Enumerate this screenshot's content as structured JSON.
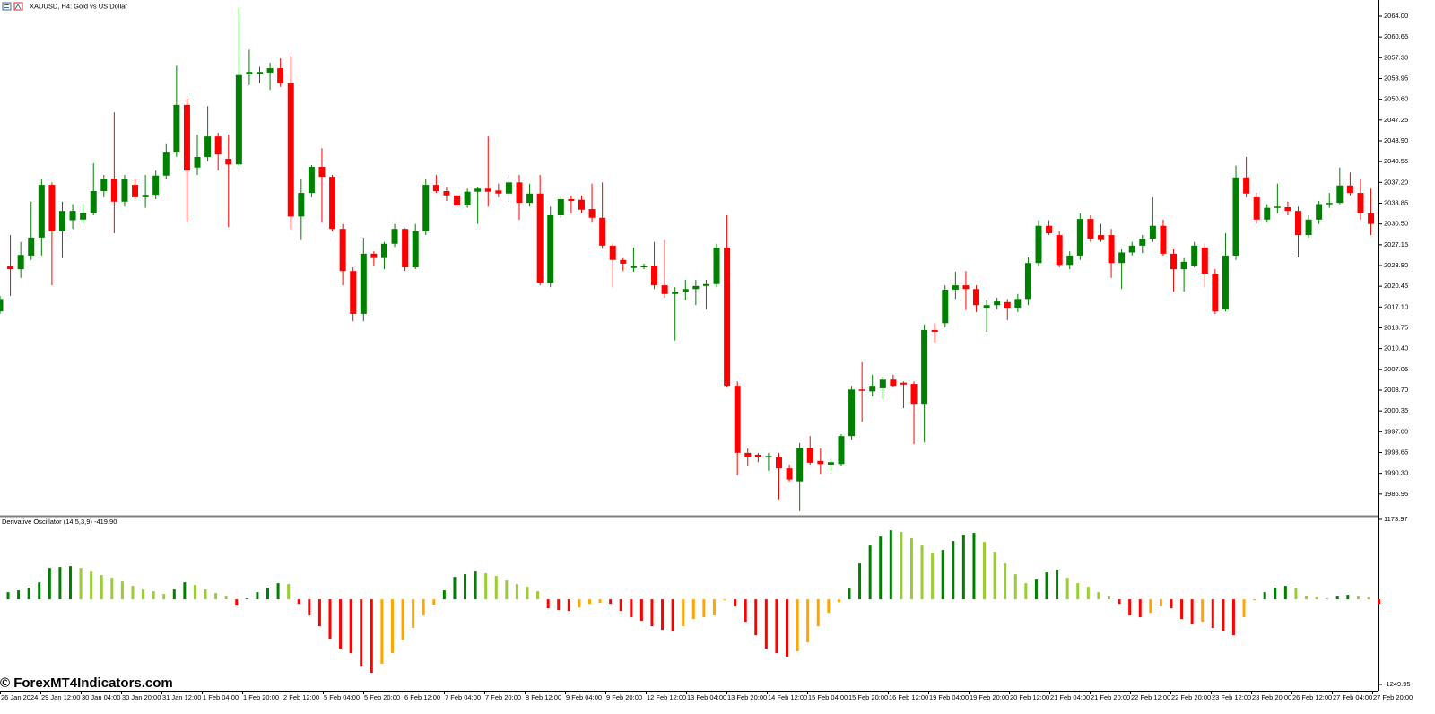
{
  "chart_data": [
    {
      "type": "candlestick",
      "title": "XAUUSD, H4:  Gold vs US Dollar",
      "x_labels": [
        "26 Jan 2024",
        "29 Jan 12:00",
        "30 Jan 04:00",
        "30 Jan 20:00",
        "31 Jan 12:00",
        "1 Feb 04:00",
        "1 Feb 20:00",
        "2 Feb 12:00",
        "5 Feb 04:00",
        "5 Feb 20:00",
        "6 Feb 12:00",
        "7 Feb 04:00",
        "7 Feb 20:00",
        "8 Feb 12:00",
        "9 Feb 04:00",
        "9 Feb 20:00",
        "12 Feb 12:00",
        "13 Feb 04:00",
        "13 Feb 20:00",
        "14 Feb 12:00",
        "15 Feb 04:00",
        "15 Feb 20:00",
        "16 Feb 12:00",
        "19 Feb 04:00",
        "19 Feb 20:00",
        "20 Feb 12:00",
        "21 Feb 04:00",
        "21 Feb 20:00",
        "22 Feb 12:00",
        "22 Feb 20:00",
        "23 Feb 12:00",
        "23 Feb 20:00",
        "26 Feb 12:00",
        "27 Feb 04:00",
        "27 Feb 20:00"
      ],
      "open": [
        2016.4,
        2023.7,
        2023.2,
        2025.4,
        2028.3,
        2036.8,
        2029.3,
        2031.1,
        2031.2,
        2032.2,
        2035.8,
        2037.8,
        2034.1,
        2036.8,
        2034.8,
        2035.2,
        2038.3,
        2042.0,
        2049.7,
        2039.6,
        2041.3,
        2044.6,
        2041.0,
        2040.1,
        2054.6,
        2054.7,
        2054.9,
        2055.6,
        2053.2,
        2031.7,
        2035.5,
        2039.7,
        2038.1,
        2029.7,
        2022.9,
        2016.0,
        2025.7,
        2025.0,
        2027.3,
        2029.7,
        2023.5,
        2029.3,
        2036.8,
        2035.8,
        2035.1,
        2033.5,
        2035.7,
        2036.2,
        2035.9,
        2035.4,
        2037.2,
        2033.9,
        2035.4,
        2021.0,
        2031.9,
        2034.5,
        2034.4,
        2032.9,
        2031.5,
        2027.0,
        2024.7,
        2023.4,
        2023.5,
        2023.8,
        2020.6,
        2019.2,
        2019.6,
        2020.0,
        2020.5,
        2020.8,
        2026.7,
        2004.4,
        1993.6,
        1993.3,
        1992.9,
        1992.9,
        1991.1,
        1989.0,
        1994.4,
        1992.3,
        1991.7,
        1991.8,
        1996.3,
        2003.8,
        2003.5,
        2004.0,
        2005.4,
        2004.9,
        2004.7,
        2001.5,
        2013.4,
        2014.5,
        2019.9,
        2020.6,
        2020.0,
        2017.0,
        2017.4,
        2017.9,
        2017.0,
        2018.4,
        2024.2,
        2030.2,
        2028.7,
        2023.9,
        2025.4,
        2031.3,
        2028.7,
        2028.7,
        2024.2,
        2025.9,
        2027.0,
        2028.1,
        2030.2,
        2025.7,
        2023.2,
        2023.8,
        2026.7,
        2022.5,
        2016.7,
        2025.4,
        2038.0,
        2034.8,
        2031.2,
        2033.1,
        2033.2,
        2032.6,
        2028.7,
        2031.2,
        2033.7,
        2033.9,
        2036.7,
        2035.5,
        2032.2
      ],
      "high": [
        2018.9,
        2028.7,
        2027.6,
        2034.1,
        2037.7,
        2037.2,
        2034.1,
        2033.7,
        2033.7,
        2040.3,
        2038.4,
        2048.5,
        2038.4,
        2037.7,
        2038.4,
        2039.1,
        2043.5,
        2056.0,
        2050.7,
        2044.9,
        2049.5,
        2045.2,
        2044.9,
        2065.4,
        2058.6,
        2055.8,
        2056.5,
        2057.2,
        2057.6,
        2037.7,
        2040.0,
        2042.7,
        2038.4,
        2030.5,
        2023.5,
        2028.3,
        2026.1,
        2027.6,
        2030.5,
        2029.8,
        2030.5,
        2037.7,
        2038.4,
        2036.5,
        2035.9,
        2036.2,
        2036.5,
        2044.6,
        2037.0,
        2038.4,
        2038.4,
        2037.0,
        2038.4,
        2033.3,
        2035.1,
        2035.1,
        2035.1,
        2037.0,
        2037.2,
        2027.3,
        2025.0,
        2026.7,
        2024.1,
        2027.6,
        2027.9,
        2020.3,
        2021.5,
        2021.5,
        2021.5,
        2027.3,
        2031.9,
        2005.1,
        1994.3,
        1993.6,
        1993.6,
        1993.6,
        1991.7,
        1995.2,
        1996.3,
        1994.3,
        1992.6,
        1996.6,
        2004.4,
        2008.2,
        2006.2,
        2005.9,
        2006.2,
        2005.1,
        2005.1,
        2014.3,
        2014.5,
        2020.6,
        2022.8,
        2022.9,
        2020.6,
        2018.2,
        2018.6,
        2018.4,
        2019.2,
        2025.1,
        2031.1,
        2031.1,
        2029.3,
        2026.1,
        2032.2,
        2031.9,
        2030.5,
        2029.7,
        2026.4,
        2027.6,
        2028.7,
        2034.8,
        2031.2,
        2026.4,
        2025.0,
        2027.6,
        2027.3,
        2023.2,
        2029.0,
        2039.9,
        2041.3,
        2035.5,
        2033.7,
        2037.0,
        2034.1,
        2033.3,
        2031.9,
        2034.2,
        2035.5,
        2039.6,
        2038.8,
        2037.7,
        2036.2
      ],
      "low": [
        2016.0,
        2018.9,
        2021.8,
        2024.7,
        2025.4,
        2020.6,
        2025.0,
        2029.7,
        2030.5,
        2031.9,
        2034.8,
        2029.0,
        2033.3,
        2034.5,
        2033.1,
        2034.5,
        2037.7,
        2041.3,
        2030.9,
        2038.4,
        2040.6,
        2039.1,
        2030.0,
        2039.9,
        2052.9,
        2053.2,
        2052.1,
        2052.6,
        2029.6,
        2027.9,
        2034.8,
        2030.7,
        2029.3,
        2020.6,
        2014.8,
        2014.8,
        2023.8,
        2023.2,
        2026.8,
        2022.9,
        2023.2,
        2028.7,
        2035.5,
        2034.2,
        2033.1,
        2033.1,
        2030.5,
        2033.3,
        2034.8,
        2034.1,
        2031.2,
        2033.3,
        2020.6,
        2020.3,
        2031.5,
        2032.2,
        2032.2,
        2030.7,
        2026.5,
        2020.3,
        2022.9,
        2022.8,
        2023.2,
        2020.0,
        2018.6,
        2011.7,
        2018.2,
        2017.4,
        2016.7,
        2020.3,
        2004.1,
        1990.0,
        1991.4,
        1992.1,
        1990.7,
        1986.1,
        1989.0,
        1984.2,
        1991.7,
        1990.2,
        1990.7,
        1991.4,
        1995.7,
        1998.6,
        2002.7,
        2002.3,
        2004.1,
        2000.8,
        1995.0,
        1995.3,
        2011.4,
        2013.8,
        2018.4,
        2016.6,
        2016.3,
        2013.1,
        2016.7,
        2015.0,
        2016.3,
        2017.4,
        2023.7,
        2028.7,
        2023.5,
        2023.2,
        2024.7,
        2027.6,
        2027.6,
        2021.8,
        2020.0,
        2025.4,
        2025.8,
        2027.6,
        2025.4,
        2019.6,
        2019.6,
        2023.5,
        2020.3,
        2016.0,
        2016.4,
        2024.7,
        2034.8,
        2030.5,
        2030.7,
        2032.2,
        2031.9,
        2025.1,
        2028.3,
        2030.5,
        2033.1,
        2033.7,
        2035.1,
        2031.2,
        2028.7
      ],
      "close": [
        2018.4,
        2023.2,
        2025.5,
        2028.3,
        2036.8,
        2029.3,
        2032.6,
        2032.6,
        2032.3,
        2035.8,
        2037.8,
        2034.1,
        2037.7,
        2034.8,
        2035.2,
        2038.3,
        2042.0,
        2049.7,
        2039.1,
        2041.3,
        2044.6,
        2041.7,
        2040.1,
        2054.5,
        2055.0,
        2055.0,
        2055.6,
        2053.2,
        2031.7,
        2035.5,
        2039.7,
        2038.1,
        2029.7,
        2022.9,
        2016.0,
        2025.7,
        2025.0,
        2027.3,
        2029.7,
        2023.5,
        2029.3,
        2036.8,
        2035.8,
        2035.1,
        2033.5,
        2035.7,
        2036.2,
        2035.7,
        2035.4,
        2037.2,
        2033.9,
        2035.4,
        2021.0,
        2031.9,
        2034.5,
        2034.2,
        2032.8,
        2031.5,
        2027.0,
        2024.7,
        2024.1,
        2023.7,
        2023.8,
        2020.6,
        2019.2,
        2019.6,
        2020.0,
        2020.5,
        2020.8,
        2026.7,
        2004.4,
        1993.6,
        1992.9,
        1992.9,
        1993.1,
        1991.1,
        1989.3,
        1994.4,
        1992.0,
        1991.8,
        1992.1,
        1996.3,
        2003.8,
        2003.7,
        2004.4,
        2005.4,
        2004.4,
        2004.6,
        2001.5,
        2013.4,
        2013.1,
        2019.9,
        2020.6,
        2020.0,
        2017.4,
        2017.4,
        2018.0,
        2017.0,
        2018.4,
        2024.2,
        2030.2,
        2029.0,
        2023.9,
        2025.4,
        2031.3,
        2028.1,
        2027.9,
        2024.2,
        2025.9,
        2027.0,
        2028.1,
        2030.2,
        2025.7,
        2023.2,
        2024.4,
        2027.0,
        2022.5,
        2016.4,
        2025.4,
        2038.0,
        2035.4,
        2031.2,
        2033.1,
        2033.3,
        2032.6,
        2028.7,
        2031.2,
        2033.7,
        2033.9,
        2036.7,
        2035.5,
        2032.2,
        2030.5
      ],
      "up_color": "#008000",
      "down_color": "#ff0000",
      "ylim": [
        1983.6,
        2066.6
      ],
      "yticks": [
        {
          "value": 2064,
          "label": "2064.00"
        },
        2060.65,
        {
          "value": 2057.3,
          "label": "2057.30"
        },
        2053.95,
        {
          "value": 2050.6,
          "label": "2050.60"
        },
        2047.25,
        {
          "value": 2043.9,
          "label": "2043.90"
        },
        2040.55,
        {
          "value": 2037.2,
          "label": "2037.20"
        },
        2033.85,
        {
          "value": 2030.5,
          "label": "2030.50"
        },
        2027.15,
        {
          "value": 2023.8,
          "label": "2023.80"
        },
        2020.45,
        {
          "value": 2017.1,
          "label": "2017.10"
        },
        2013.75,
        {
          "value": 2010.4,
          "label": "2010.40"
        },
        2007.05,
        {
          "value": 2003.7,
          "label": "2003.70"
        },
        2000.35,
        {
          "value": 1997,
          "label": "1997.00"
        },
        1993.65,
        {
          "value": 1990.3,
          "label": "1990.30"
        },
        1986.95
      ],
      "grid": false
    },
    {
      "type": "bar",
      "title": "Derivative Oscillator (14,5,3,9) -419.90",
      "values": [
        105,
        132,
        171,
        250,
        461,
        474,
        487,
        461,
        408,
        356,
        316,
        263,
        198,
        145,
        119,
        79,
        145,
        250,
        211,
        145,
        92,
        40,
        -92,
        13,
        105,
        171,
        237,
        224,
        -66,
        -237,
        -395,
        -579,
        -724,
        -790,
        -988,
        -1080,
        -948,
        -790,
        -593,
        -421,
        -237,
        -79,
        132,
        329,
        369,
        408,
        382,
        342,
        277,
        224,
        184,
        119,
        -132,
        -158,
        -171,
        -119,
        -66,
        -53,
        -66,
        -171,
        -263,
        -316,
        -395,
        -448,
        -474,
        -395,
        -290,
        -263,
        -237,
        -13,
        -105,
        -329,
        -527,
        -724,
        -790,
        -843,
        -764,
        -632,
        -395,
        -198,
        -40,
        158,
        527,
        790,
        922,
        1014,
        988,
        896,
        790,
        685,
        724,
        856,
        948,
        975,
        843,
        698,
        527,
        369,
        237,
        290,
        395,
        435,
        316,
        237,
        184,
        105,
        40,
        -66,
        -237,
        -263,
        -198,
        -105,
        -132,
        -290,
        -369,
        -329,
        -421,
        -461,
        -527,
        -263,
        -13,
        105,
        171,
        198,
        171,
        53,
        26,
        13,
        40,
        66,
        40,
        26,
        -66
      ],
      "bar_states": [
        "d",
        "d",
        "d",
        "d",
        "d",
        "d",
        "d",
        "l",
        "l",
        "l",
        "l",
        "l",
        "l",
        "l",
        "l",
        "l",
        "d",
        "d",
        "l",
        "l",
        "l",
        "l",
        "r",
        "d",
        "d",
        "d",
        "d",
        "l",
        "r",
        "r",
        "r",
        "r",
        "r",
        "r",
        "r",
        "r",
        "o",
        "o",
        "o",
        "o",
        "o",
        "o",
        "d",
        "d",
        "d",
        "d",
        "l",
        "l",
        "l",
        "l",
        "l",
        "l",
        "r",
        "r",
        "r",
        "o",
        "o",
        "o",
        "r",
        "r",
        "r",
        "r",
        "r",
        "r",
        "r",
        "o",
        "o",
        "o",
        "o",
        "o",
        "r",
        "r",
        "r",
        "r",
        "r",
        "r",
        "o",
        "o",
        "o",
        "o",
        "o",
        "d",
        "d",
        "d",
        "d",
        "d",
        "l",
        "l",
        "l",
        "l",
        "d",
        "d",
        "d",
        "d",
        "l",
        "l",
        "l",
        "l",
        "l",
        "d",
        "d",
        "d",
        "l",
        "l",
        "l",
        "l",
        "l",
        "r",
        "r",
        "r",
        "o",
        "o",
        "r",
        "r",
        "r",
        "o",
        "r",
        "r",
        "r",
        "o",
        "o",
        "d",
        "d",
        "d",
        "l",
        "l",
        "l",
        "l",
        "d",
        "d",
        "l",
        "l",
        "r"
      ],
      "palette": {
        "d": "#008000",
        "l": "#9acd32",
        "r": "#ff0000",
        "o": "#ffa500"
      },
      "ylim": [
        -1342,
        1200
      ],
      "yticks": [
        1173.97,
        -1249.95
      ]
    }
  ],
  "watermark": "© ForexMT4Indicators.com"
}
